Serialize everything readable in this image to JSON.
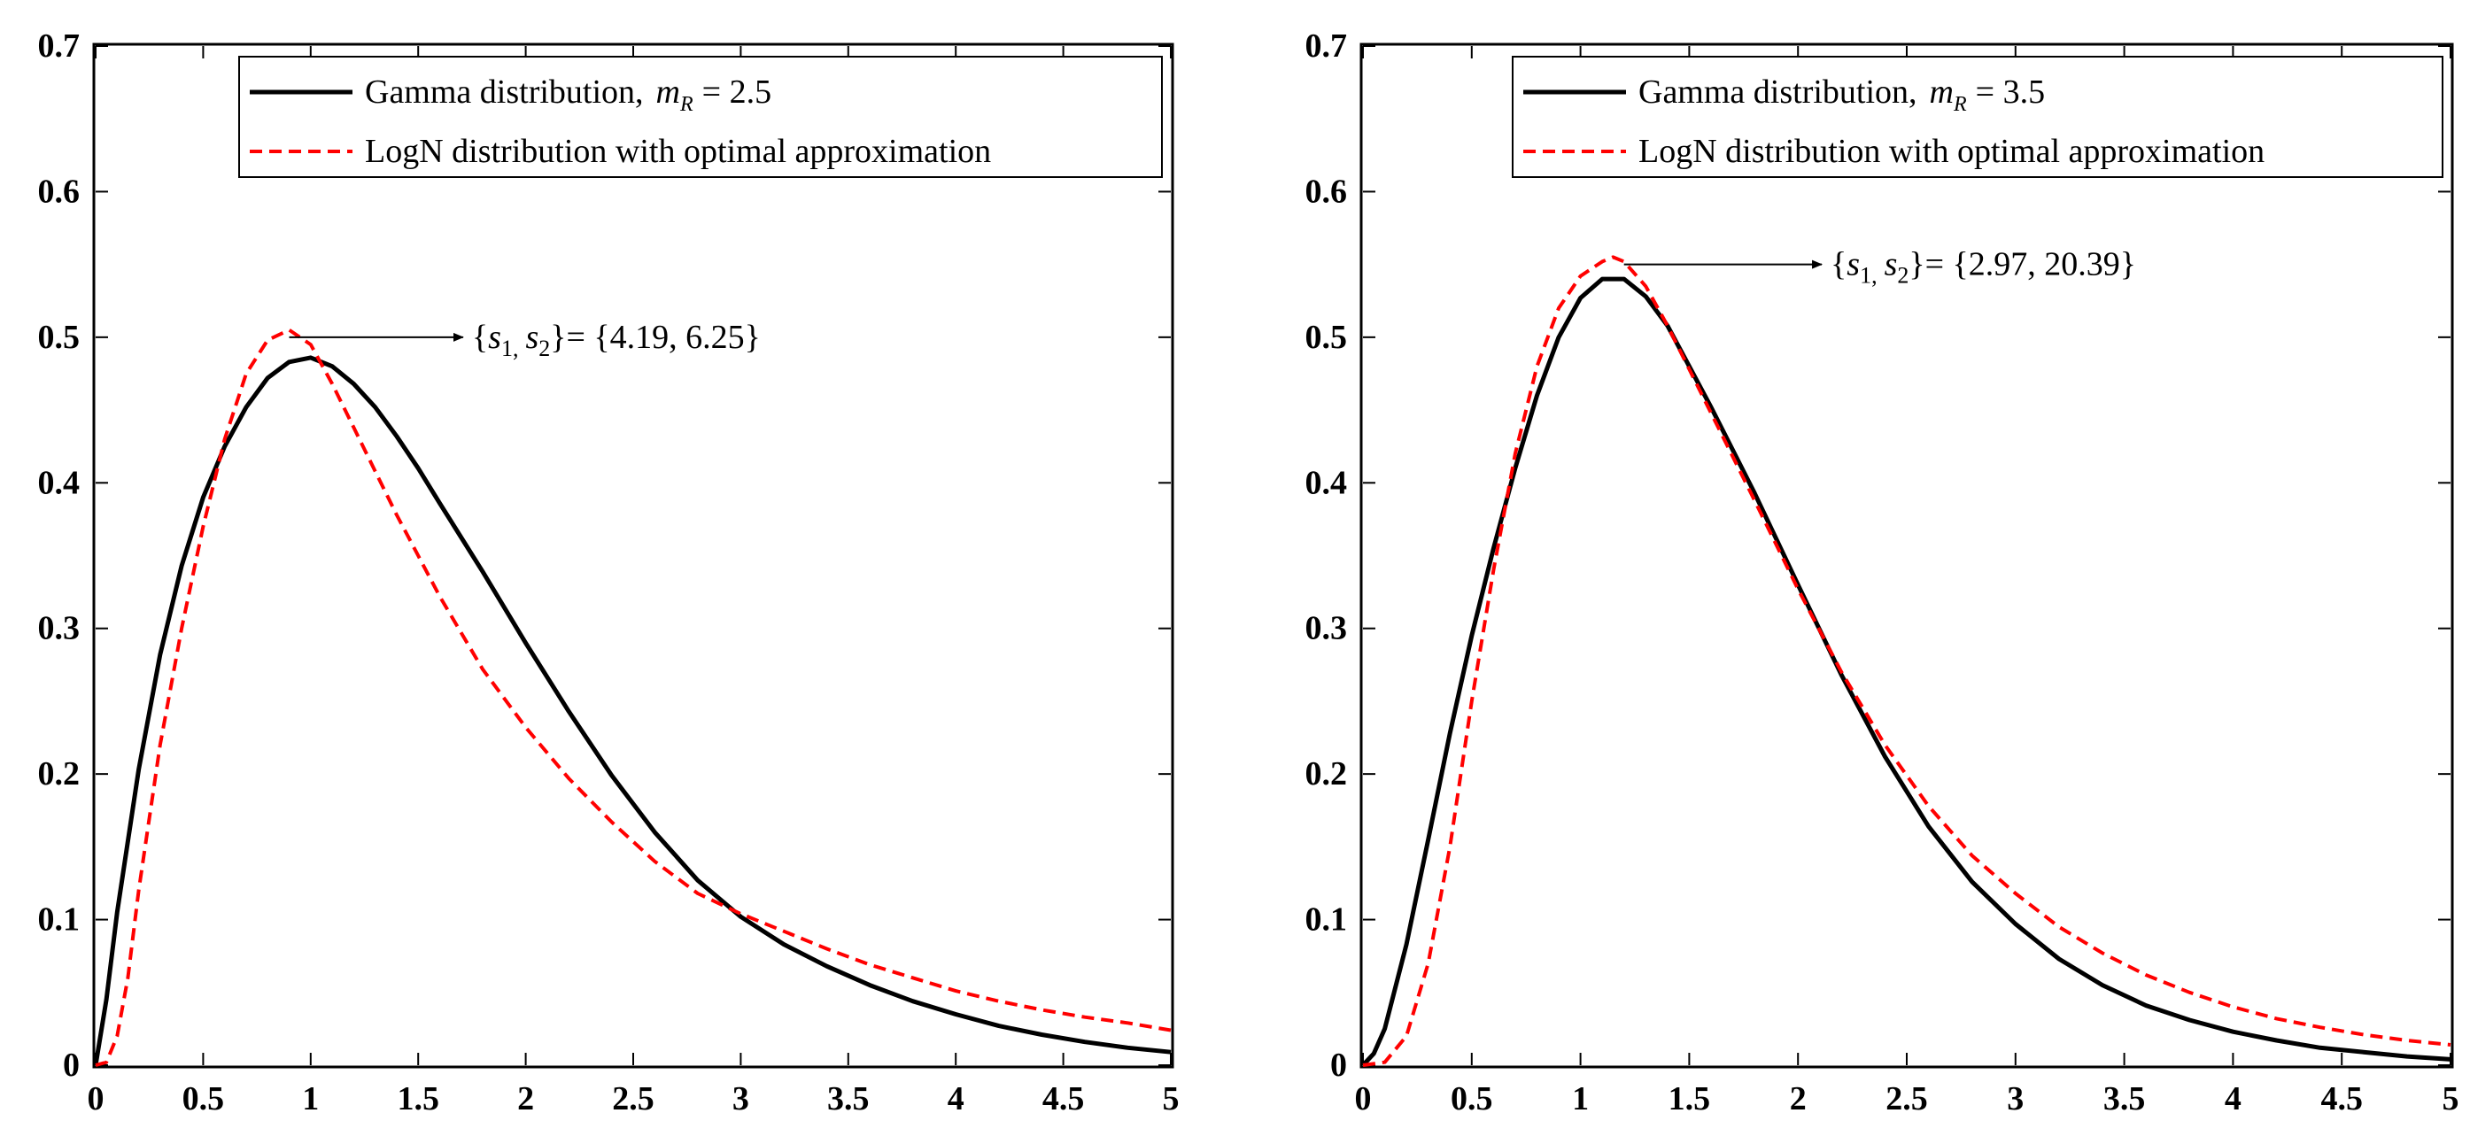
{
  "figure_title": "",
  "chart_data": [
    {
      "type": "line",
      "title": "",
      "xlabel": "",
      "ylabel": "",
      "xlim": [
        0,
        5
      ],
      "ylim": [
        0,
        0.7
      ],
      "grid": false,
      "x_ticks": [
        0,
        0.5,
        1,
        1.5,
        2,
        2.5,
        3,
        3.5,
        4,
        4.5,
        5
      ],
      "x_tick_labels": [
        "0",
        "0.5",
        "1",
        "1.5",
        "2",
        "2.5",
        "3",
        "3.5",
        "4",
        "4.5",
        "5"
      ],
      "y_ticks": [
        0,
        0.1,
        0.2,
        0.3,
        0.4,
        0.5,
        0.6,
        0.7
      ],
      "y_tick_labels": [
        "0",
        "0.1",
        "0.2",
        "0.3",
        "0.4",
        "0.5",
        "0.6",
        "0.7"
      ],
      "legend_position": "top-right",
      "legend": {
        "gamma_label": "Gamma distribution,",
        "gamma_param_symbol": "m",
        "gamma_param_sub": "R",
        "gamma_param_value": "= 2.5",
        "logn_label": "LogN distribution with optimal approximation"
      },
      "annotation": {
        "prefix": "{",
        "s1": "s",
        "s1_sub": "1,",
        "s2": "s",
        "s2_sub": "2",
        "suffix": "}= {4.19, 6.25}",
        "point": [
          0.9,
          0.5
        ],
        "text_at": [
          1.75,
          0.5
        ]
      },
      "series": [
        {
          "name": "Gamma distribution",
          "style": "solid",
          "color": "#000000",
          "x": [
            0,
            0.05,
            0.1,
            0.2,
            0.3,
            0.4,
            0.5,
            0.6,
            0.7,
            0.8,
            0.9,
            1.0,
            1.1,
            1.2,
            1.3,
            1.4,
            1.5,
            1.6,
            1.8,
            2.0,
            2.2,
            2.4,
            2.6,
            2.8,
            3.0,
            3.2,
            3.4,
            3.6,
            3.8,
            4.0,
            4.2,
            4.4,
            4.6,
            4.8,
            5.0
          ],
          "y": [
            0,
            0.045,
            0.105,
            0.203,
            0.282,
            0.343,
            0.39,
            0.425,
            0.452,
            0.472,
            0.483,
            0.486,
            0.48,
            0.468,
            0.452,
            0.432,
            0.41,
            0.386,
            0.339,
            0.29,
            0.243,
            0.199,
            0.16,
            0.127,
            0.102,
            0.083,
            0.068,
            0.055,
            0.044,
            0.035,
            0.027,
            0.021,
            0.016,
            0.012,
            0.009
          ]
        },
        {
          "name": "LogN distribution with optimal approximation",
          "style": "dashed",
          "color": "#ff0000",
          "x": [
            0,
            0.05,
            0.1,
            0.15,
            0.2,
            0.3,
            0.4,
            0.5,
            0.6,
            0.7,
            0.8,
            0.9,
            1.0,
            1.1,
            1.2,
            1.3,
            1.4,
            1.5,
            1.6,
            1.8,
            2.0,
            2.2,
            2.4,
            2.6,
            2.8,
            3.0,
            3.2,
            3.4,
            3.6,
            3.8,
            4.0,
            4.2,
            4.4,
            4.6,
            4.8,
            5.0
          ],
          "y": [
            0,
            0.002,
            0.02,
            0.06,
            0.12,
            0.22,
            0.3,
            0.37,
            0.43,
            0.475,
            0.498,
            0.505,
            0.495,
            0.468,
            0.438,
            0.408,
            0.378,
            0.35,
            0.322,
            0.272,
            0.232,
            0.197,
            0.167,
            0.14,
            0.118,
            0.104,
            0.092,
            0.08,
            0.069,
            0.06,
            0.051,
            0.044,
            0.038,
            0.033,
            0.029,
            0.024
          ]
        }
      ]
    },
    {
      "type": "line",
      "title": "",
      "xlabel": "",
      "ylabel": "",
      "xlim": [
        0,
        5
      ],
      "ylim": [
        0,
        0.7
      ],
      "grid": false,
      "x_ticks": [
        0,
        0.5,
        1,
        1.5,
        2,
        2.5,
        3,
        3.5,
        4,
        4.5,
        5
      ],
      "x_tick_labels": [
        "0",
        "0.5",
        "1",
        "1.5",
        "2",
        "2.5",
        "3",
        "3.5",
        "4",
        "4.5",
        "5"
      ],
      "y_ticks": [
        0,
        0.1,
        0.2,
        0.3,
        0.4,
        0.5,
        0.6,
        0.7
      ],
      "y_tick_labels": [
        "0",
        "0.1",
        "0.2",
        "0.3",
        "0.4",
        "0.5",
        "0.6",
        "0.7"
      ],
      "legend_position": "top-right",
      "legend": {
        "gamma_label": "Gamma distribution,",
        "gamma_param_symbol": "m",
        "gamma_param_sub": "R",
        "gamma_param_value": "= 3.5",
        "logn_label": "LogN distribution with optimal approximation"
      },
      "annotation": {
        "prefix": "{",
        "s1": "s",
        "s1_sub": "1,",
        "s2": "s",
        "s2_sub": "2",
        "suffix": "}= {2.97, 20.39}",
        "point": [
          1.2,
          0.55
        ],
        "text_at": [
          2.15,
          0.55
        ]
      },
      "series": [
        {
          "name": "Gamma distribution",
          "style": "solid",
          "color": "#000000",
          "x": [
            0,
            0.05,
            0.1,
            0.2,
            0.3,
            0.4,
            0.5,
            0.6,
            0.7,
            0.8,
            0.9,
            1.0,
            1.1,
            1.2,
            1.3,
            1.4,
            1.5,
            1.6,
            1.8,
            2.0,
            2.2,
            2.4,
            2.6,
            2.8,
            3.0,
            3.2,
            3.4,
            3.6,
            3.8,
            4.0,
            4.2,
            4.4,
            4.6,
            4.8,
            5.0
          ],
          "y": [
            0,
            0.008,
            0.025,
            0.083,
            0.155,
            0.228,
            0.295,
            0.355,
            0.41,
            0.46,
            0.5,
            0.527,
            0.54,
            0.54,
            0.528,
            0.508,
            0.48,
            0.452,
            0.393,
            0.33,
            0.268,
            0.212,
            0.164,
            0.126,
            0.097,
            0.073,
            0.055,
            0.041,
            0.031,
            0.023,
            0.017,
            0.012,
            0.009,
            0.006,
            0.004
          ]
        },
        {
          "name": "LogN distribution with optimal approximation",
          "style": "dashed",
          "color": "#ff0000",
          "x": [
            0,
            0.1,
            0.2,
            0.3,
            0.4,
            0.5,
            0.6,
            0.7,
            0.8,
            0.9,
            1.0,
            1.1,
            1.15,
            1.2,
            1.3,
            1.4,
            1.5,
            1.6,
            1.8,
            2.0,
            2.2,
            2.4,
            2.6,
            2.8,
            3.0,
            3.2,
            3.4,
            3.6,
            3.8,
            4.0,
            4.2,
            4.4,
            4.6,
            4.8,
            5.0
          ],
          "y": [
            0,
            0.002,
            0.02,
            0.07,
            0.15,
            0.25,
            0.34,
            0.42,
            0.48,
            0.52,
            0.542,
            0.552,
            0.555,
            0.552,
            0.535,
            0.508,
            0.478,
            0.448,
            0.388,
            0.327,
            0.27,
            0.22,
            0.178,
            0.144,
            0.118,
            0.095,
            0.077,
            0.062,
            0.05,
            0.04,
            0.032,
            0.026,
            0.021,
            0.017,
            0.014
          ]
        }
      ]
    }
  ]
}
